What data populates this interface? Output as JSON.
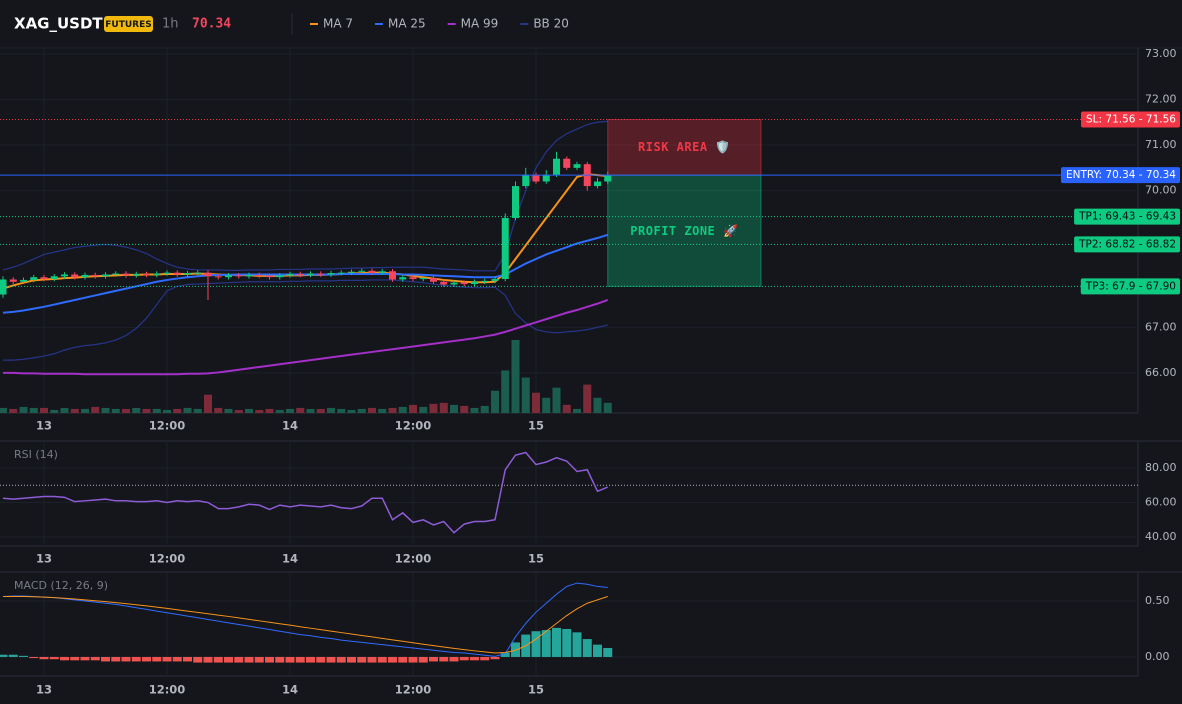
{
  "chart_data": [
    {
      "type": "candlestick",
      "title": "XAG_USDT",
      "badge": "FUTURES",
      "interval": "1h",
      "last_price": 70.34,
      "categories": [
        null,
        null,
        null,
        null,
        "13",
        null,
        null,
        null,
        null,
        null,
        null,
        null,
        null,
        null,
        null,
        null,
        "12:00",
        null,
        null,
        null,
        null,
        null,
        null,
        null,
        null,
        null,
        null,
        null,
        "14",
        null,
        null,
        null,
        null,
        null,
        null,
        null,
        null,
        null,
        null,
        null,
        "12:00",
        null,
        null,
        null,
        null,
        null,
        null,
        null,
        null,
        null,
        null,
        null,
        "15",
        null,
        null,
        null,
        null,
        null,
        null,
        null
      ],
      "open": [
        67.72,
        68.05,
        68.0,
        68.04,
        68.1,
        68.06,
        68.12,
        68.16,
        68.1,
        68.15,
        68.12,
        68.16,
        68.18,
        68.14,
        68.17,
        68.15,
        68.18,
        68.2,
        68.16,
        68.19,
        68.2,
        68.12,
        68.1,
        68.14,
        68.12,
        68.15,
        68.13,
        68.1,
        68.14,
        68.17,
        68.15,
        68.18,
        68.16,
        68.19,
        68.2,
        68.22,
        68.24,
        68.2,
        68.23,
        68.05,
        68.1,
        68.06,
        68.08,
        68.0,
        67.94,
        67.98,
        67.95,
        68.0,
        68.02,
        68.06,
        69.4,
        70.1,
        70.35,
        70.2,
        70.35,
        70.7,
        70.5,
        70.58,
        70.1,
        70.2
      ],
      "high": [
        68.12,
        68.1,
        68.09,
        68.15,
        68.15,
        68.17,
        68.21,
        68.21,
        68.2,
        68.2,
        68.21,
        68.23,
        68.23,
        68.22,
        68.22,
        68.23,
        68.25,
        68.25,
        68.24,
        68.25,
        68.25,
        68.17,
        68.19,
        68.19,
        68.2,
        68.2,
        68.18,
        68.19,
        68.22,
        68.22,
        68.23,
        68.23,
        68.24,
        68.25,
        68.27,
        68.29,
        68.29,
        68.28,
        68.28,
        68.15,
        68.15,
        68.13,
        68.13,
        68.05,
        68.03,
        68.03,
        68.05,
        68.07,
        68.11,
        69.5,
        70.2,
        70.5,
        70.4,
        70.45,
        70.85,
        70.75,
        70.63,
        70.63,
        70.28,
        70.42
      ],
      "low": [
        67.65,
        67.95,
        67.95,
        67.99,
        68.01,
        68.01,
        68.07,
        68.05,
        68.05,
        68.07,
        68.07,
        68.11,
        68.09,
        68.09,
        68.1,
        68.1,
        68.13,
        68.11,
        68.11,
        68.14,
        67.6,
        68.05,
        68.05,
        68.07,
        68.07,
        68.08,
        68.05,
        68.05,
        68.09,
        68.1,
        68.1,
        68.11,
        68.11,
        68.14,
        68.15,
        68.17,
        68.15,
        68.15,
        68.0,
        68.0,
        68.01,
        68.01,
        67.95,
        67.89,
        67.89,
        67.9,
        67.9,
        67.95,
        67.97,
        68.01,
        69.35,
        70.05,
        70.15,
        70.15,
        70.3,
        70.45,
        70.45,
        70.0,
        70.05,
        70.15
      ],
      "close": [
        68.05,
        68.0,
        68.04,
        68.1,
        68.06,
        68.12,
        68.16,
        68.1,
        68.15,
        68.12,
        68.16,
        68.18,
        68.14,
        68.17,
        68.15,
        68.18,
        68.2,
        68.16,
        68.19,
        68.2,
        68.12,
        68.1,
        68.14,
        68.12,
        68.15,
        68.13,
        68.1,
        68.14,
        68.17,
        68.15,
        68.18,
        68.16,
        68.19,
        68.2,
        68.22,
        68.24,
        68.2,
        68.23,
        68.05,
        68.1,
        68.06,
        68.08,
        68.0,
        67.94,
        67.98,
        67.95,
        68.0,
        68.02,
        68.06,
        69.4,
        70.1,
        70.35,
        70.2,
        70.35,
        70.7,
        70.5,
        70.58,
        70.1,
        70.2,
        70.34
      ],
      "volume": [
        5,
        4,
        6,
        5,
        5,
        3,
        5,
        4,
        4,
        6,
        5,
        4,
        4,
        5,
        4,
        4,
        3,
        4,
        5,
        4,
        18,
        5,
        4,
        3,
        4,
        3,
        4,
        3,
        4,
        5,
        4,
        4,
        5,
        4,
        3,
        4,
        5,
        4,
        5,
        6,
        8,
        6,
        9,
        10,
        8,
        7,
        5,
        7,
        22,
        42,
        72,
        35,
        20,
        15,
        25,
        8,
        4,
        28,
        15,
        10
      ],
      "up_color": "#0ecb81",
      "down_color": "#f6465d",
      "volume_up_color": "#1b5e50",
      "volume_down_color": "#7e2b39",
      "series": [
        {
          "name": "MA 7",
          "color": "#f7931a",
          "values": [
            67.85,
            67.92,
            67.98,
            68.03,
            68.05,
            68.06,
            68.08,
            68.09,
            68.11,
            68.12,
            68.13,
            68.14,
            68.15,
            68.15,
            68.16,
            68.16,
            68.17,
            68.17,
            68.17,
            68.18,
            68.17,
            68.16,
            68.15,
            68.15,
            68.14,
            68.13,
            68.13,
            68.13,
            68.14,
            68.14,
            68.15,
            68.15,
            68.16,
            68.17,
            68.18,
            68.19,
            68.2,
            68.2,
            68.18,
            68.16,
            68.13,
            68.1,
            68.07,
            68.04,
            68.02,
            68.0,
            67.99,
            67.99,
            68.0,
            68.2,
            68.5,
            68.8,
            69.1,
            69.4,
            69.7,
            70.0,
            70.3,
            70.36,
            70.34,
            70.32
          ]
        },
        {
          "name": "MA 25",
          "color": "#2f6bff",
          "values": [
            67.32,
            67.34,
            67.37,
            67.41,
            67.45,
            67.5,
            67.55,
            67.6,
            67.65,
            67.7,
            67.75,
            67.8,
            67.85,
            67.9,
            67.95,
            68.0,
            68.04,
            68.07,
            68.1,
            68.12,
            68.14,
            68.15,
            68.15,
            68.16,
            68.16,
            68.16,
            68.16,
            68.16,
            68.16,
            68.16,
            68.16,
            68.16,
            68.16,
            68.17,
            68.17,
            68.17,
            68.17,
            68.17,
            68.17,
            68.16,
            68.16,
            68.15,
            68.14,
            68.13,
            68.12,
            68.11,
            68.1,
            68.1,
            68.1,
            68.16,
            68.28,
            68.4,
            68.5,
            68.6,
            68.68,
            68.76,
            68.84,
            68.9,
            68.96,
            69.03
          ]
        },
        {
          "name": "MA 99",
          "color": "#a52fc9",
          "values": [
            66.0,
            66.0,
            65.99,
            65.99,
            65.98,
            65.98,
            65.98,
            65.98,
            65.97,
            65.97,
            65.97,
            65.97,
            65.97,
            65.97,
            65.97,
            65.97,
            65.97,
            65.97,
            65.98,
            65.98,
            65.99,
            66.01,
            66.04,
            66.07,
            66.1,
            66.13,
            66.16,
            66.19,
            66.22,
            66.25,
            66.28,
            66.31,
            66.34,
            66.37,
            66.4,
            66.43,
            66.46,
            66.49,
            66.52,
            66.55,
            66.58,
            66.61,
            66.64,
            66.67,
            66.7,
            66.73,
            66.76,
            66.8,
            66.84,
            66.9,
            66.97,
            67.04,
            67.11,
            67.18,
            67.25,
            67.32,
            67.38,
            67.45,
            67.52,
            67.6
          ]
        }
      ],
      "bands": [
        {
          "name": "BB 20",
          "color": "#26348a",
          "upper": [
            68.26,
            68.32,
            68.4,
            68.5,
            68.6,
            68.65,
            68.7,
            68.75,
            68.78,
            68.8,
            68.82,
            68.8,
            68.76,
            68.7,
            68.62,
            68.5,
            68.4,
            68.32,
            68.28,
            68.26,
            68.26,
            68.26,
            68.25,
            68.25,
            68.26,
            68.26,
            68.26,
            68.27,
            68.27,
            68.27,
            68.28,
            68.28,
            68.28,
            68.29,
            68.3,
            68.3,
            68.31,
            68.31,
            68.32,
            68.32,
            68.32,
            68.32,
            68.3,
            68.28,
            68.27,
            68.26,
            68.24,
            68.24,
            68.24,
            68.6,
            69.4,
            70.0,
            70.5,
            70.85,
            71.1,
            71.25,
            71.35,
            71.45,
            71.5,
            71.52
          ],
          "lower": [
            66.28,
            66.28,
            66.3,
            66.33,
            66.37,
            66.42,
            66.5,
            66.56,
            66.6,
            66.62,
            66.66,
            66.72,
            66.82,
            66.98,
            67.2,
            67.5,
            67.8,
            67.9,
            67.94,
            67.95,
            67.96,
            67.97,
            67.98,
            67.99,
            68.0,
            68.0,
            68.0,
            68.0,
            68.01,
            68.01,
            68.02,
            68.02,
            68.02,
            68.03,
            68.03,
            68.03,
            68.04,
            68.04,
            68.04,
            68.02,
            68.0,
            67.98,
            67.95,
            67.92,
            67.9,
            67.88,
            67.87,
            67.87,
            67.88,
            67.7,
            67.3,
            67.1,
            66.95,
            66.9,
            66.88,
            66.9,
            66.92,
            66.95,
            67.0,
            67.05
          ]
        }
      ],
      "levels": [
        {
          "label": "SL: 71.56 - 71.56",
          "value": 71.56,
          "color": "#f23645",
          "label_color": "#ffffff"
        },
        {
          "label": "ENTRY: 70.34 - 70.34",
          "value": 70.34,
          "color": "#2962ff",
          "label_color": "#ffffff"
        },
        {
          "label": "TP1: 69.43 - 69.43",
          "value": 69.43,
          "color": "#0ecb81",
          "label_color": "#0b0e11"
        },
        {
          "label": "TP2: 68.82 - 68.82",
          "value": 68.82,
          "color": "#0ecb81",
          "label_color": "#0b0e11"
        },
        {
          "label": "TP3: 67.9 - 67.90",
          "value": 67.9,
          "color": "#0ecb81",
          "label_color": "#0b0e11"
        }
      ],
      "zones": [
        {
          "label": "RISK AREA 🛡️",
          "color": "#f23645"
        },
        {
          "label": "PROFIT ZONE 🚀",
          "color": "#0ecb81"
        }
      ],
      "ylim": [
        65.12,
        73.13
      ],
      "yticks": [
        {
          "value": 66,
          "label": "66.00"
        },
        {
          "value": 67,
          "label": "67.00"
        },
        {
          "value": 70,
          "label": "70.00"
        },
        {
          "value": 71,
          "label": "71.00"
        },
        {
          "value": 72,
          "label": "72.00"
        },
        {
          "value": 73,
          "label": "73.00"
        }
      ],
      "grid": true
    },
    {
      "type": "line",
      "title": "RSI (14)",
      "categories": [
        null,
        null,
        null,
        null,
        "13",
        null,
        null,
        null,
        null,
        null,
        null,
        null,
        null,
        null,
        null,
        null,
        "12:00",
        null,
        null,
        null,
        null,
        null,
        null,
        null,
        null,
        null,
        null,
        null,
        "14",
        null,
        null,
        null,
        null,
        null,
        null,
        null,
        null,
        null,
        null,
        null,
        "12:00",
        null,
        null,
        null,
        null,
        null,
        null,
        null,
        null,
        null,
        null,
        null,
        "15",
        null,
        null,
        null,
        null,
        null,
        null,
        null
      ],
      "color": "#8e5cd6",
      "values": [
        62.5,
        62,
        62.5,
        63,
        63.5,
        63.5,
        63,
        60.5,
        61,
        61.5,
        62,
        61,
        61,
        60.5,
        60.5,
        61,
        60,
        61,
        60.5,
        61,
        60,
        56.5,
        56.5,
        57.5,
        59,
        58.5,
        56,
        58.5,
        57.5,
        58.5,
        58,
        57.5,
        58.5,
        57,
        56.5,
        58,
        62.5,
        62.5,
        50,
        54,
        48.5,
        50,
        47,
        49,
        42.5,
        47.5,
        49,
        49,
        50,
        79,
        87.5,
        89,
        82,
        83.5,
        86,
        84,
        78,
        79,
        66.5,
        69
      ],
      "reference_line": 70,
      "ylim": [
        34.8,
        95.1
      ],
      "yticks": [
        {
          "value": 40,
          "label": "40.00"
        },
        {
          "value": 60,
          "label": "60.00"
        },
        {
          "value": 80,
          "label": "80.00"
        }
      ],
      "grid": true
    },
    {
      "type": "macd",
      "title": "MACD (12, 26, 9)",
      "categories": [
        null,
        null,
        null,
        null,
        "13",
        null,
        null,
        null,
        null,
        null,
        null,
        null,
        null,
        null,
        null,
        null,
        "12:00",
        null,
        null,
        null,
        null,
        null,
        null,
        null,
        null,
        null,
        null,
        null,
        "14",
        null,
        null,
        null,
        null,
        null,
        null,
        null,
        null,
        null,
        null,
        null,
        "12:00",
        null,
        null,
        null,
        null,
        null,
        null,
        null,
        null,
        null,
        null,
        null,
        "15",
        null,
        null,
        null,
        null,
        null,
        null,
        null
      ],
      "lines": [
        {
          "color": "#2f6bff",
          "values": [
            0.54,
            0.545,
            0.545,
            0.54,
            0.535,
            0.53,
            0.52,
            0.51,
            0.5,
            0.49,
            0.48,
            0.47,
            0.455,
            0.44,
            0.425,
            0.41,
            0.395,
            0.38,
            0.365,
            0.35,
            0.335,
            0.32,
            0.305,
            0.29,
            0.275,
            0.26,
            0.245,
            0.23,
            0.215,
            0.2,
            0.19,
            0.175,
            0.165,
            0.15,
            0.14,
            0.13,
            0.12,
            0.11,
            0.1,
            0.09,
            0.08,
            0.07,
            0.06,
            0.05,
            0.04,
            0.035,
            0.025,
            0.015,
            0.005,
            0.03,
            0.18,
            0.3,
            0.4,
            0.48,
            0.56,
            0.63,
            0.66,
            0.65,
            0.63,
            0.62
          ]
        },
        {
          "color": "#f7931a",
          "values": [
            0.54,
            0.54,
            0.54,
            0.538,
            0.535,
            0.53,
            0.525,
            0.518,
            0.51,
            0.502,
            0.494,
            0.485,
            0.476,
            0.466,
            0.456,
            0.445,
            0.434,
            0.422,
            0.41,
            0.398,
            0.386,
            0.374,
            0.362,
            0.349,
            0.336,
            0.323,
            0.31,
            0.297,
            0.284,
            0.27,
            0.257,
            0.244,
            0.231,
            0.218,
            0.205,
            0.192,
            0.179,
            0.166,
            0.153,
            0.14,
            0.127,
            0.114,
            0.101,
            0.089,
            0.077,
            0.066,
            0.055,
            0.045,
            0.035,
            0.04,
            0.06,
            0.1,
            0.16,
            0.23,
            0.3,
            0.37,
            0.43,
            0.48,
            0.51,
            0.54
          ]
        }
      ],
      "histogram": [
        0.02,
        0.02,
        0.01,
        -0.01,
        -0.02,
        -0.02,
        -0.03,
        -0.03,
        -0.03,
        -0.03,
        -0.04,
        -0.04,
        -0.04,
        -0.04,
        -0.04,
        -0.04,
        -0.04,
        -0.04,
        -0.04,
        -0.05,
        -0.05,
        -0.05,
        -0.05,
        -0.05,
        -0.05,
        -0.05,
        -0.05,
        -0.05,
        -0.05,
        -0.05,
        -0.05,
        -0.05,
        -0.05,
        -0.05,
        -0.05,
        -0.05,
        -0.05,
        -0.05,
        -0.05,
        -0.05,
        -0.05,
        -0.05,
        -0.04,
        -0.04,
        -0.04,
        -0.03,
        -0.03,
        -0.03,
        -0.02,
        0.04,
        0.13,
        0.2,
        0.23,
        0.24,
        0.26,
        0.25,
        0.22,
        0.16,
        0.11,
        0.08
      ],
      "positive_color": "#26a69a",
      "negative_color": "#ef5350",
      "ylim": [
        -0.17,
        0.75
      ],
      "yticks": [
        {
          "value": 0,
          "label": "0.00"
        },
        {
          "value": 0.5,
          "label": "0.50"
        }
      ],
      "grid": true
    }
  ]
}
